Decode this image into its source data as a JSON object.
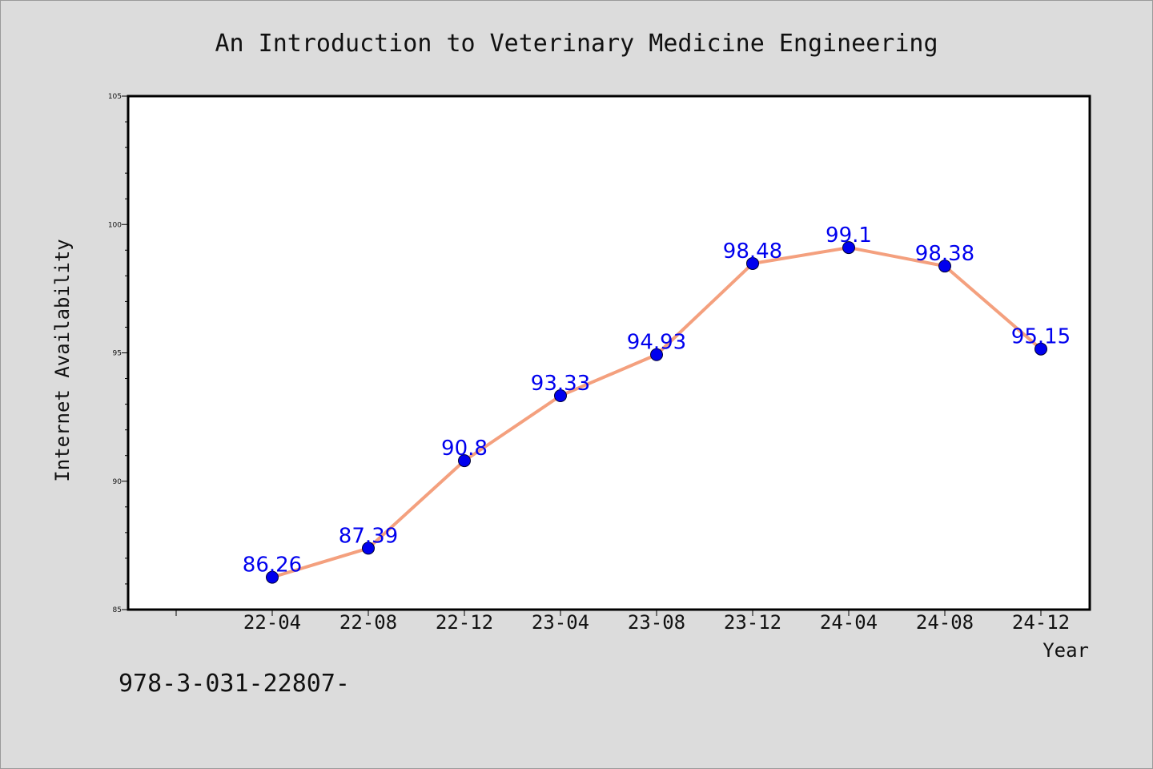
{
  "chart_data": {
    "type": "line",
    "title": "An Introduction to Veterinary Medicine Engineering",
    "xlabel": "Year",
    "ylabel": "Internet Availability",
    "categories": [
      "22-04",
      "22-08",
      "22-12",
      "23-04",
      "23-08",
      "23-12",
      "24-04",
      "24-08",
      "24-12"
    ],
    "series": [
      {
        "values": [
          86.26,
          87.39,
          90.8,
          93.33,
          94.93,
          98.48,
          99.1,
          98.38,
          95.15
        ],
        "labels": [
          "86.26",
          "87.39",
          "90.8",
          "93.33",
          "94.93",
          "98.48",
          "99.1",
          "98.38",
          "95.15"
        ]
      }
    ],
    "ylim": [
      85,
      105
    ],
    "yticks": [
      "85",
      "90",
      "95",
      "100",
      "105"
    ],
    "grid": false,
    "legend": "none",
    "colors": {
      "line": "#f4a07e",
      "marker": "#0000ee",
      "label": "#0000ee"
    }
  },
  "caption": "978-3-031-22807-"
}
